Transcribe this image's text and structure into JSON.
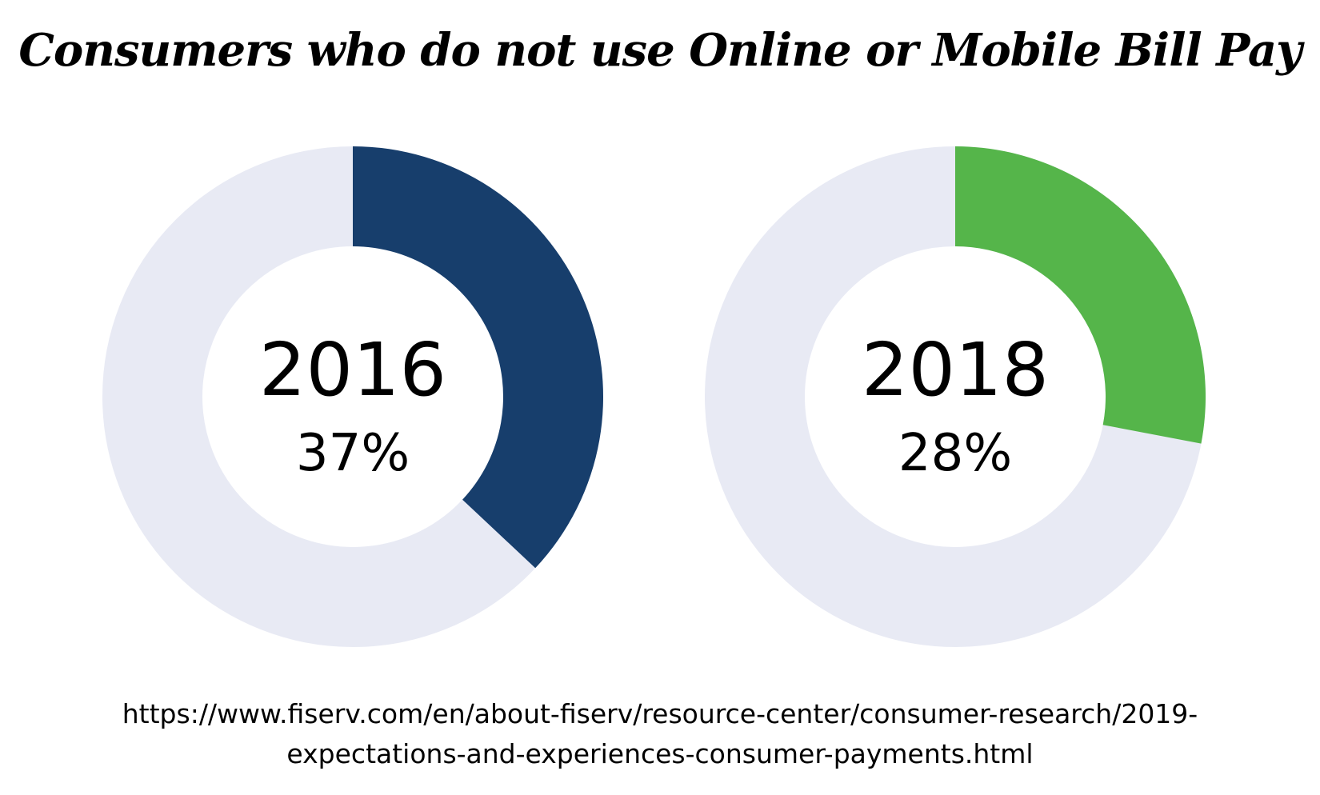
{
  "chart_data": [
    {
      "type": "pie",
      "title": "Consumers who do not use Online or Mobile Bill Pay",
      "center_label": "2016",
      "value_label": "37%",
      "values": [
        37,
        63
      ],
      "colors": {
        "segment": "#173e6c",
        "track": "#e8eaf4"
      }
    },
    {
      "type": "pie",
      "title": "Consumers who do not use Online or Mobile Bill Pay",
      "center_label": "2018",
      "value_label": "28%",
      "values": [
        28,
        72
      ],
      "colors": {
        "segment": "#55b54a",
        "track": "#e8eaf4"
      }
    }
  ],
  "title": "Consumers who do not use Online or Mobile Bill Pay",
  "source": {
    "line1": "https://www.fiserv.com/en/about-fiserv/resource-center/consumer-research/2019-",
    "line2": "expectations-and-experiences-consumer-payments.html"
  }
}
